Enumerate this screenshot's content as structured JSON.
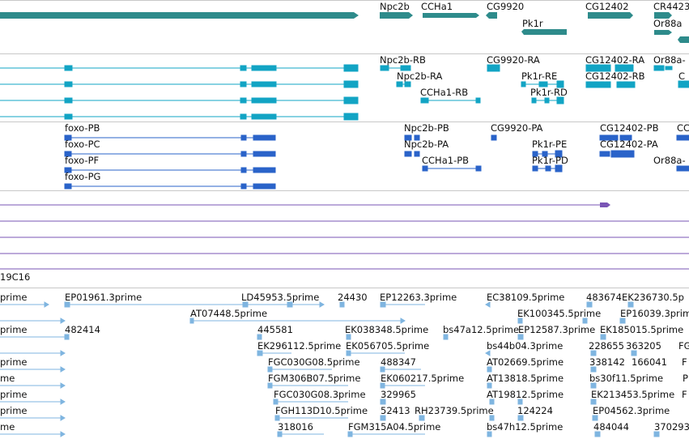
{
  "colors": {
    "gene": "#2e8b8b",
    "mrna": "#12a4c4",
    "protein": "#2a63c9",
    "purple": "#7a55b5",
    "est": "#7fb5e0",
    "separator": "#c8c8c8"
  },
  "tracks": {
    "genes": {
      "labels": [
        "Npc2b",
        "CCHa1",
        "CG9920",
        "Pk1r",
        "CG12402",
        "CR4423",
        "Or88a"
      ]
    },
    "transcripts": {
      "labels": [
        "Npc2b-RB",
        "CG9920-RA",
        "CG12402-RA",
        "Or88a-",
        "Npc2b-RA",
        "Pk1r-RE",
        "CG12402-RB",
        "C",
        "CCHa1-RB",
        "Pk1r-RD"
      ]
    },
    "proteins": {
      "labels": [
        "foxo-PB",
        "Npc2b-PB",
        "CG9920-PA",
        "CG12402-PB",
        "CC",
        "foxo-PC",
        "Npc2b-PA",
        "Pk1r-PE",
        "CG12402-PA",
        "foxo-PF",
        "CCHa1-PB",
        "Pk1r-PD",
        "Or88a-",
        "foxo-PG"
      ]
    },
    "band": {
      "label": "19C16"
    },
    "ests": {
      "labels": [
        "prime",
        "EP01961.3prime",
        "LD45953.5prime",
        "24430",
        "EP12263.3prime",
        "EC38109.5prime",
        "483674",
        "EK236730.5p",
        "AT07448.5prime",
        "EK100345.5prime",
        "EP16039.3prim",
        "prime",
        "482414",
        "445581",
        "EK038348.5prime",
        "bs47a12.5prime",
        "EP12587.3prime",
        "EK185015.5prime",
        "EK296112.5prime",
        "EK056705.5prime",
        "bs44b04.3prime",
        "228655",
        "363205",
        "FG",
        "prime",
        "FGC030G08.5prime",
        "488347",
        "AT02669.5prime",
        "338142",
        "166041",
        "F",
        "me",
        "FGM306B07.5prime",
        "EK060217.5prime",
        "AT13818.5prime",
        "bs30f11.5prime",
        "P",
        "prime",
        "FGC030G08.3prime",
        "329965",
        "AT19812.5prime",
        "EK213453.5prime",
        "F",
        "prime",
        "FGH113D10.5prime",
        "52413",
        "RH23739.5prime",
        "124224",
        "EP04562.3prime",
        "me",
        "318016",
        "FGM315A04.5prime",
        "bs47h12.5prime",
        "484044",
        "370293"
      ]
    }
  }
}
